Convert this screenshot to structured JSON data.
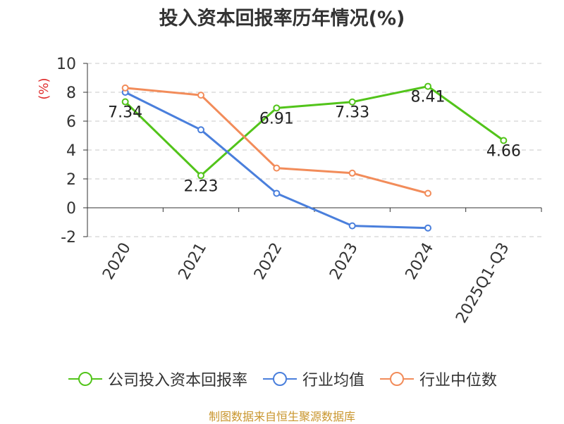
{
  "chart_data": {
    "type": "line",
    "title": "投入资本回报率历年情况(%)",
    "ylabel": "(%)",
    "xlabel": "",
    "categories": [
      "2020",
      "2021",
      "2022",
      "2023",
      "2024",
      "2025Q1-Q3"
    ],
    "ylim": [
      -2,
      10
    ],
    "yticks": [
      -2,
      0,
      2,
      4,
      6,
      8,
      10
    ],
    "grid": true,
    "legend_position": "bottom",
    "series": [
      {
        "name": "公司投入资本回报率",
        "color": "#52c41a",
        "values": [
          7.34,
          2.23,
          6.91,
          7.33,
          8.41,
          4.66
        ],
        "labels": [
          "7.34",
          "2.23",
          "6.91",
          "7.33",
          "8.41",
          "4.66"
        ]
      },
      {
        "name": "行业均值",
        "color": "#4a7fdc",
        "values": [
          8.0,
          5.4,
          1.0,
          -1.25,
          -1.4,
          null
        ]
      },
      {
        "name": "行业中位数",
        "color": "#f28c5a",
        "values": [
          8.3,
          7.8,
          2.75,
          2.4,
          1.0,
          null
        ]
      }
    ]
  },
  "footer": {
    "source": "制图数据来自恒生聚源数据库"
  }
}
